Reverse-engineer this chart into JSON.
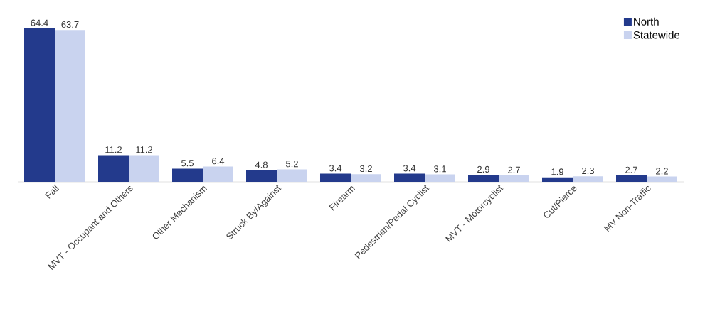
{
  "chart_data": {
    "type": "bar",
    "categories": [
      "Fall",
      "MVT - Occupant and Others",
      "Other Mechanism",
      "Struck By/Against",
      "Firearm",
      "Pedestrian/Pedal Cyclist",
      "MVT - Motorcyclist",
      "Cut/Pierce",
      "MV Non-Traffic"
    ],
    "series": [
      {
        "name": "North",
        "color": "#233a8c",
        "values": [
          64.4,
          11.2,
          5.5,
          4.8,
          3.4,
          3.4,
          2.9,
          1.9,
          2.7
        ]
      },
      {
        "name": "Statewide",
        "color": "#c9d3ef",
        "values": [
          63.7,
          11.2,
          6.4,
          5.2,
          3.2,
          3.1,
          2.7,
          2.3,
          2.2
        ]
      }
    ],
    "data_labels": true,
    "legend": "top right"
  }
}
